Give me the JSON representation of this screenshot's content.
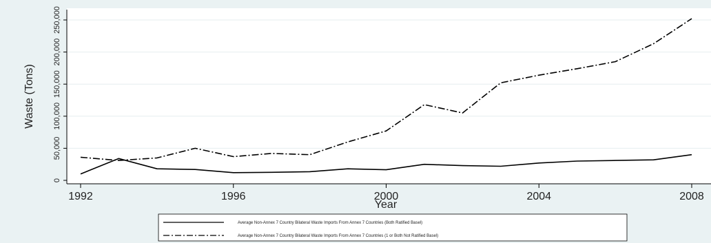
{
  "chart_data": {
    "type": "line",
    "title": "",
    "xlabel": "Year",
    "ylabel": "Waste (Tons)",
    "x": [
      1992,
      1993,
      1994,
      1995,
      1996,
      1997,
      1998,
      1999,
      2000,
      2001,
      2002,
      2003,
      2004,
      2005,
      2006,
      2007,
      2008
    ],
    "xticks": [
      "1992",
      "1996",
      "2000",
      "2004",
      "2008"
    ],
    "yticks": [
      "0",
      "50,000",
      "100,000",
      "150,000",
      "200,000",
      "250,000"
    ],
    "xlim": [
      1992,
      2008
    ],
    "ylim": [
      0,
      250000
    ],
    "grid": true,
    "legend_position": "bottom",
    "series": [
      {
        "name": "Average Non-Annex 7 Country Bilateral Waste Imports From Annex 7 Countries (Both Ratified Basel)",
        "style": "solid",
        "color": "#000000",
        "values": [
          10000,
          34000,
          18000,
          17000,
          12000,
          12500,
          13500,
          18000,
          16500,
          25000,
          23000,
          22000,
          27000,
          30000,
          31000,
          32000,
          40000
        ]
      },
      {
        "name": "Average Non-Annex 7 Country Bilateral Waste Imports From Annex 7 Countries (1 or Both Not Ratified Basel)",
        "style": "dash-dot",
        "color": "#000000",
        "values": [
          36000,
          31000,
          35000,
          50000,
          37000,
          42000,
          40000,
          60000,
          77000,
          118000,
          105000,
          152000,
          164000,
          174000,
          185000,
          213000,
          252000
        ]
      }
    ]
  }
}
